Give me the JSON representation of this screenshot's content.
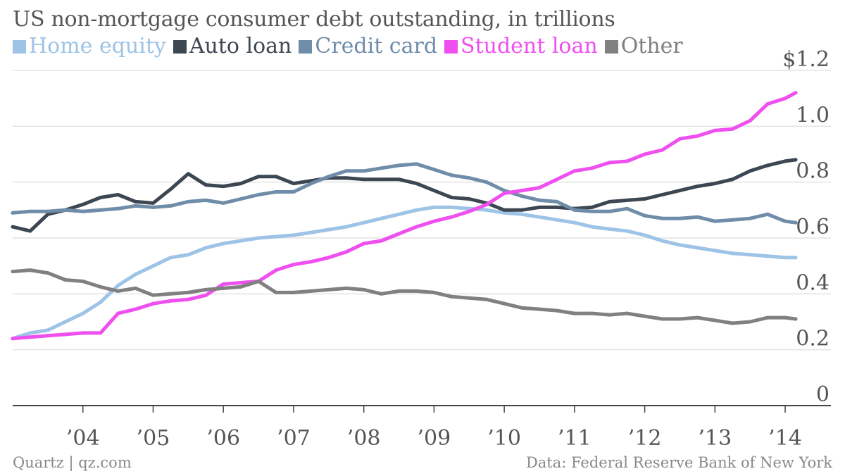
{
  "chart_data": {
    "type": "line",
    "title": "US non-mortgage consumer debt outstanding, in trillions",
    "y_tick_labels": [
      "0",
      "0.2",
      "0.4",
      "0.6",
      "0.8",
      "1.0",
      "$1.2"
    ],
    "y_ticks": [
      0,
      0.2,
      0.4,
      0.6,
      0.8,
      1.0,
      1.2
    ],
    "ylim": [
      0,
      1.2
    ],
    "x_tick_labels": [
      "’04",
      "’05",
      "’06",
      "’07",
      "’08",
      "’09",
      "’10",
      "’11",
      "’12",
      "’13",
      "’14"
    ],
    "x_ticks": [
      2004,
      2005,
      2006,
      2007,
      2008,
      2009,
      2010,
      2011,
      2012,
      2013,
      2014
    ],
    "xlim": [
      2003.0,
      2014.15
    ],
    "grid": true,
    "legend_position": "top-left",
    "x": [
      2003.0,
      2003.25,
      2003.5,
      2003.75,
      2004.0,
      2004.25,
      2004.5,
      2004.75,
      2005.0,
      2005.25,
      2005.5,
      2005.75,
      2006.0,
      2006.25,
      2006.5,
      2006.75,
      2007.0,
      2007.25,
      2007.5,
      2007.75,
      2008.0,
      2008.25,
      2008.5,
      2008.75,
      2009.0,
      2009.25,
      2009.5,
      2009.75,
      2010.0,
      2010.25,
      2010.5,
      2010.75,
      2011.0,
      2011.25,
      2011.5,
      2011.75,
      2012.0,
      2012.25,
      2012.5,
      2012.75,
      2013.0,
      2013.25,
      2013.5,
      2013.75,
      2014.0,
      2014.15
    ],
    "series": [
      {
        "name": "Home equity",
        "color": "#9dc3e6",
        "values": [
          0.24,
          0.26,
          0.27,
          0.3,
          0.33,
          0.37,
          0.43,
          0.47,
          0.5,
          0.53,
          0.54,
          0.565,
          0.58,
          0.59,
          0.6,
          0.605,
          0.61,
          0.62,
          0.63,
          0.64,
          0.655,
          0.67,
          0.685,
          0.7,
          0.71,
          0.71,
          0.705,
          0.7,
          0.69,
          0.685,
          0.675,
          0.665,
          0.655,
          0.64,
          0.632,
          0.625,
          0.61,
          0.59,
          0.575,
          0.565,
          0.555,
          0.545,
          0.54,
          0.535,
          0.53,
          0.53
        ]
      },
      {
        "name": "Auto loan",
        "color": "#3c4752",
        "values": [
          0.64,
          0.625,
          0.685,
          0.7,
          0.72,
          0.745,
          0.755,
          0.73,
          0.725,
          0.775,
          0.83,
          0.79,
          0.785,
          0.795,
          0.82,
          0.82,
          0.795,
          0.805,
          0.815,
          0.815,
          0.81,
          0.81,
          0.81,
          0.795,
          0.77,
          0.745,
          0.74,
          0.725,
          0.7,
          0.7,
          0.71,
          0.71,
          0.705,
          0.71,
          0.73,
          0.735,
          0.74,
          0.755,
          0.77,
          0.785,
          0.795,
          0.81,
          0.84,
          0.86,
          0.875,
          0.88
        ]
      },
      {
        "name": "Credit card",
        "color": "#6f8ca8",
        "values": [
          0.69,
          0.695,
          0.695,
          0.7,
          0.695,
          0.7,
          0.705,
          0.715,
          0.71,
          0.715,
          0.73,
          0.735,
          0.725,
          0.74,
          0.755,
          0.765,
          0.765,
          0.795,
          0.82,
          0.84,
          0.84,
          0.85,
          0.86,
          0.865,
          0.845,
          0.825,
          0.815,
          0.8,
          0.77,
          0.75,
          0.735,
          0.73,
          0.7,
          0.695,
          0.695,
          0.705,
          0.68,
          0.67,
          0.67,
          0.675,
          0.66,
          0.665,
          0.67,
          0.685,
          0.66,
          0.655
        ]
      },
      {
        "name": "Student loan",
        "color": "#f04ff0",
        "values": [
          0.24,
          0.245,
          0.25,
          0.255,
          0.26,
          0.26,
          0.33,
          0.345,
          0.365,
          0.375,
          0.38,
          0.395,
          0.435,
          0.44,
          0.445,
          0.485,
          0.505,
          0.515,
          0.53,
          0.55,
          0.58,
          0.59,
          0.615,
          0.64,
          0.66,
          0.675,
          0.695,
          0.72,
          0.76,
          0.77,
          0.78,
          0.81,
          0.84,
          0.85,
          0.87,
          0.875,
          0.9,
          0.915,
          0.955,
          0.965,
          0.985,
          0.99,
          1.02,
          1.08,
          1.1,
          1.12
        ]
      },
      {
        "name": "Other",
        "color": "#808080",
        "values": [
          0.48,
          0.485,
          0.475,
          0.45,
          0.445,
          0.425,
          0.41,
          0.42,
          0.395,
          0.4,
          0.405,
          0.415,
          0.42,
          0.425,
          0.445,
          0.405,
          0.405,
          0.41,
          0.415,
          0.42,
          0.415,
          0.4,
          0.41,
          0.41,
          0.405,
          0.39,
          0.385,
          0.38,
          0.365,
          0.35,
          0.345,
          0.34,
          0.33,
          0.33,
          0.325,
          0.33,
          0.32,
          0.31,
          0.31,
          0.315,
          0.305,
          0.295,
          0.3,
          0.315,
          0.315,
          0.31
        ]
      }
    ]
  },
  "footer": {
    "source_left": "Quartz | qz.com",
    "source_right": "Data: Federal Reserve Bank of New York"
  }
}
